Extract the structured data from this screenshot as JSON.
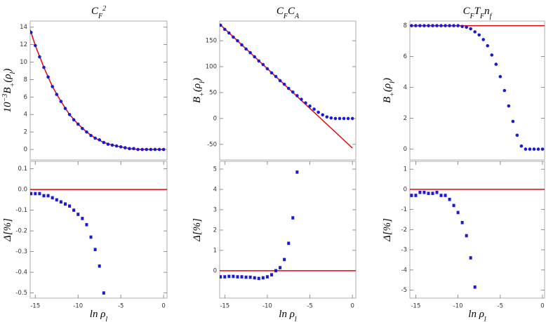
{
  "chart_data": [
    {
      "type": "scatter",
      "title": [
        {
          "text": "C"
        },
        {
          "text": "F",
          "sub": true
        },
        {
          "text": "2",
          "sup": true
        }
      ],
      "ylabel": [
        {
          "text": "10"
        },
        {
          "text": "−3",
          "sup": true
        },
        {
          "text": "B"
        },
        {
          "text": "+",
          "sub": true
        },
        {
          "text": "(ρ"
        },
        {
          "text": "l",
          "sub": true
        },
        {
          "text": ")"
        }
      ],
      "xlim": [
        -15.6,
        0.4
      ],
      "ylim": [
        -1.2,
        14.7
      ],
      "yticks": [
        0,
        2,
        4,
        6,
        8,
        10,
        12,
        14
      ],
      "series": [
        {
          "mode": "line",
          "color": "#e8000b",
          "x": [
            -15.6,
            -15,
            -14,
            -13,
            -12,
            -11,
            -10,
            -9,
            -8,
            -7,
            -6,
            -5,
            -4,
            -3,
            -2,
            -1,
            0
          ],
          "values": [
            13.7,
            11.9,
            9.4,
            7.2,
            5.5,
            4.0,
            2.9,
            2.0,
            1.3,
            0.8,
            0.5,
            0.3,
            0.1,
            0,
            0,
            0,
            0
          ]
        },
        {
          "mode": "markers",
          "marker": "circle",
          "color": "#1a1ad6",
          "x": [
            -15.5,
            -15,
            -14.5,
            -14,
            -13.5,
            -13,
            -12.5,
            -12,
            -11.5,
            -11,
            -10.5,
            -10,
            -9.5,
            -9,
            -8.5,
            -8,
            -7.5,
            -7,
            -6.5,
            -6,
            -5.5,
            -5,
            -4.5,
            -4,
            -3.5,
            -3,
            -2.5,
            -2,
            -1.5,
            -1,
            -0.5,
            0
          ],
          "values": [
            13.4,
            11.9,
            10.6,
            9.4,
            8.3,
            7.2,
            6.3,
            5.5,
            4.7,
            4.0,
            3.4,
            2.9,
            2.4,
            2.0,
            1.6,
            1.3,
            1.1,
            0.8,
            0.6,
            0.5,
            0.4,
            0.3,
            0.2,
            0.1,
            0.1,
            0,
            0,
            0,
            0,
            0,
            0,
            0
          ]
        }
      ]
    },
    {
      "type": "scatter",
      "title": [
        {
          "text": "C"
        },
        {
          "text": "F",
          "sub": true
        },
        {
          "text": "C"
        },
        {
          "text": "A",
          "sub": true
        }
      ],
      "ylabel": [
        {
          "text": "B"
        },
        {
          "text": "+",
          "sub": true
        },
        {
          "text": "(ρ"
        },
        {
          "text": "l",
          "sub": true
        },
        {
          "text": ")"
        }
      ],
      "xlim": [
        -15.6,
        0.4
      ],
      "ylim": [
        -80,
        188
      ],
      "yticks": [
        -50,
        0,
        50,
        100,
        150
      ],
      "series": [
        {
          "mode": "line",
          "color": "#e8000b",
          "x": [
            -15.6,
            0
          ],
          "values": [
            182,
            -57
          ]
        },
        {
          "mode": "markers",
          "marker": "circle",
          "color": "#1a1ad6",
          "x": [
            -15.5,
            -15,
            -14.5,
            -14,
            -13.5,
            -13,
            -12.5,
            -12,
            -11.5,
            -11,
            -10.5,
            -10,
            -9.5,
            -9,
            -8.5,
            -8,
            -7.5,
            -7,
            -6.5,
            -6,
            -5.5,
            -5,
            -4.5,
            -4,
            -3.5,
            -3,
            -2.5,
            -2,
            -1.5,
            -1,
            -0.5,
            0
          ],
          "values": [
            180,
            172,
            165,
            157,
            150,
            142,
            134,
            127,
            119,
            111,
            104,
            96,
            88,
            81,
            73,
            66,
            58,
            51,
            44,
            37,
            30,
            24,
            18,
            12,
            7,
            3,
            1,
            0,
            0,
            0,
            0,
            0
          ]
        }
      ]
    },
    {
      "type": "scatter",
      "title": [
        {
          "text": "C"
        },
        {
          "text": "F",
          "sub": true
        },
        {
          "text": "T"
        },
        {
          "text": "F",
          "sub": true
        },
        {
          "text": "n"
        },
        {
          "text": "f",
          "sub": true
        }
      ],
      "ylabel": [
        {
          "text": "B"
        },
        {
          "text": "+",
          "sub": true
        },
        {
          "text": "(ρ"
        },
        {
          "text": "l",
          "sub": true
        },
        {
          "text": ")"
        }
      ],
      "xlim": [
        -15.7,
        0.25
      ],
      "ylim": [
        -0.7,
        8.3
      ],
      "yticks": [
        0,
        2,
        4,
        6,
        8
      ],
      "series": [
        {
          "mode": "line",
          "color": "#e8000b",
          "x": [
            -15.7,
            0.25
          ],
          "values": [
            8,
            8
          ]
        },
        {
          "mode": "markers",
          "marker": "circle",
          "color": "#1a1ad6",
          "x": [
            -15.5,
            -15,
            -14.5,
            -14,
            -13.5,
            -13,
            -12.5,
            -12,
            -11.5,
            -11,
            -10.5,
            -10,
            -9.5,
            -9,
            -8.5,
            -8,
            -7.5,
            -7,
            -6.5,
            -6,
            -5.5,
            -5,
            -4.5,
            -4,
            -3.5,
            -3,
            -2.5,
            -2,
            -1.5,
            -1,
            -0.5,
            0
          ],
          "values": [
            8,
            8,
            8,
            8,
            8,
            8,
            8,
            8,
            8,
            8,
            8,
            8,
            7.95,
            7.9,
            7.8,
            7.6,
            7.4,
            7.1,
            6.7,
            6.1,
            5.5,
            4.7,
            3.8,
            2.8,
            1.8,
            0.9,
            0.2,
            0,
            0,
            0,
            0,
            0
          ]
        }
      ]
    },
    {
      "type": "scatter",
      "ylabel": [
        {
          "text": "Δ[%]"
        }
      ],
      "xlabel": [
        {
          "text": "ln ρ"
        },
        {
          "text": "l",
          "sub": true
        }
      ],
      "xlim": [
        -15.6,
        0.4
      ],
      "ylim": [
        -0.525,
        0.136
      ],
      "xticks": [
        -15,
        -10,
        -5,
        0
      ],
      "yticks": [
        0.1,
        {
          "value": 0,
          "label": "0.0"
        },
        -0.1,
        -0.2,
        -0.3,
        -0.4,
        -0.5
      ],
      "series": [
        {
          "mode": "line",
          "color": "#e8000b",
          "x": [
            -15.6,
            0.4
          ],
          "values": [
            0,
            0
          ]
        },
        {
          "mode": "markers",
          "marker": "square",
          "color": "#1a1ad6",
          "x": [
            -15.5,
            -15,
            -14.5,
            -14,
            -13.5,
            -13,
            -12.5,
            -12,
            -11.5,
            -11,
            -10.5,
            -10,
            -9.5,
            -9,
            -8.5,
            -8,
            -7.5,
            -7
          ],
          "values": [
            -0.02,
            -0.02,
            -0.02,
            -0.03,
            -0.03,
            -0.04,
            -0.05,
            -0.06,
            -0.07,
            -0.08,
            -0.1,
            -0.12,
            -0.14,
            -0.17,
            -0.23,
            -0.29,
            -0.37,
            -0.5
          ]
        }
      ]
    },
    {
      "type": "scatter",
      "ylabel": [
        {
          "text": "Δ[%]"
        }
      ],
      "xlabel": [
        {
          "text": "ln ρ"
        },
        {
          "text": "l",
          "sub": true
        }
      ],
      "xlim": [
        -15.6,
        0.4
      ],
      "ylim": [
        -1.35,
        5.38
      ],
      "xticks": [
        -15,
        -10,
        -5,
        0
      ],
      "yticks": [
        0,
        1,
        2,
        3,
        4,
        5
      ],
      "series": [
        {
          "mode": "line",
          "color": "#e8000b",
          "x": [
            -15.6,
            0.4
          ],
          "values": [
            0,
            0
          ]
        },
        {
          "mode": "markers",
          "marker": "square",
          "color": "#1a1ad6",
          "x": [
            -15.5,
            -15,
            -14.5,
            -14,
            -13.5,
            -13,
            -12.5,
            -12,
            -11.5,
            -11,
            -10.5,
            -10,
            -9.5,
            -9,
            -8.5,
            -8,
            -7.5,
            -7,
            -6.5
          ],
          "values": [
            -0.3,
            -0.3,
            -0.28,
            -0.28,
            -0.3,
            -0.3,
            -0.32,
            -0.32,
            -0.35,
            -0.38,
            -0.35,
            -0.3,
            -0.2,
            0.0,
            0.15,
            0.55,
            1.35,
            2.6,
            4.85
          ]
        }
      ]
    },
    {
      "type": "scatter",
      "ylabel": [
        {
          "text": "Δ[%]"
        }
      ],
      "xlabel": [
        {
          "text": "ln ρ"
        },
        {
          "text": "l",
          "sub": true
        }
      ],
      "xlim": [
        -15.7,
        0.25
      ],
      "ylim": [
        -5.4,
        1.39
      ],
      "xticks": [
        -15,
        -10,
        -5,
        0
      ],
      "yticks": [
        1,
        0,
        -1,
        -2,
        -3,
        -4,
        -5
      ],
      "series": [
        {
          "mode": "line",
          "color": "#e8000b",
          "x": [
            -15.7,
            0.25
          ],
          "values": [
            0,
            0
          ]
        },
        {
          "mode": "markers",
          "marker": "square",
          "color": "#1a1ad6",
          "x": [
            -15.5,
            -15,
            -14.5,
            -14,
            -13.5,
            -13,
            -12.5,
            -12,
            -11.5,
            -11,
            -10.5,
            -10,
            -9.5,
            -9,
            -8.5,
            -8
          ],
          "values": [
            -0.3,
            -0.3,
            -0.15,
            -0.15,
            -0.2,
            -0.2,
            -0.15,
            -0.3,
            -0.3,
            -0.5,
            -0.8,
            -1.15,
            -1.65,
            -2.3,
            -3.4,
            -4.85
          ]
        }
      ]
    }
  ]
}
